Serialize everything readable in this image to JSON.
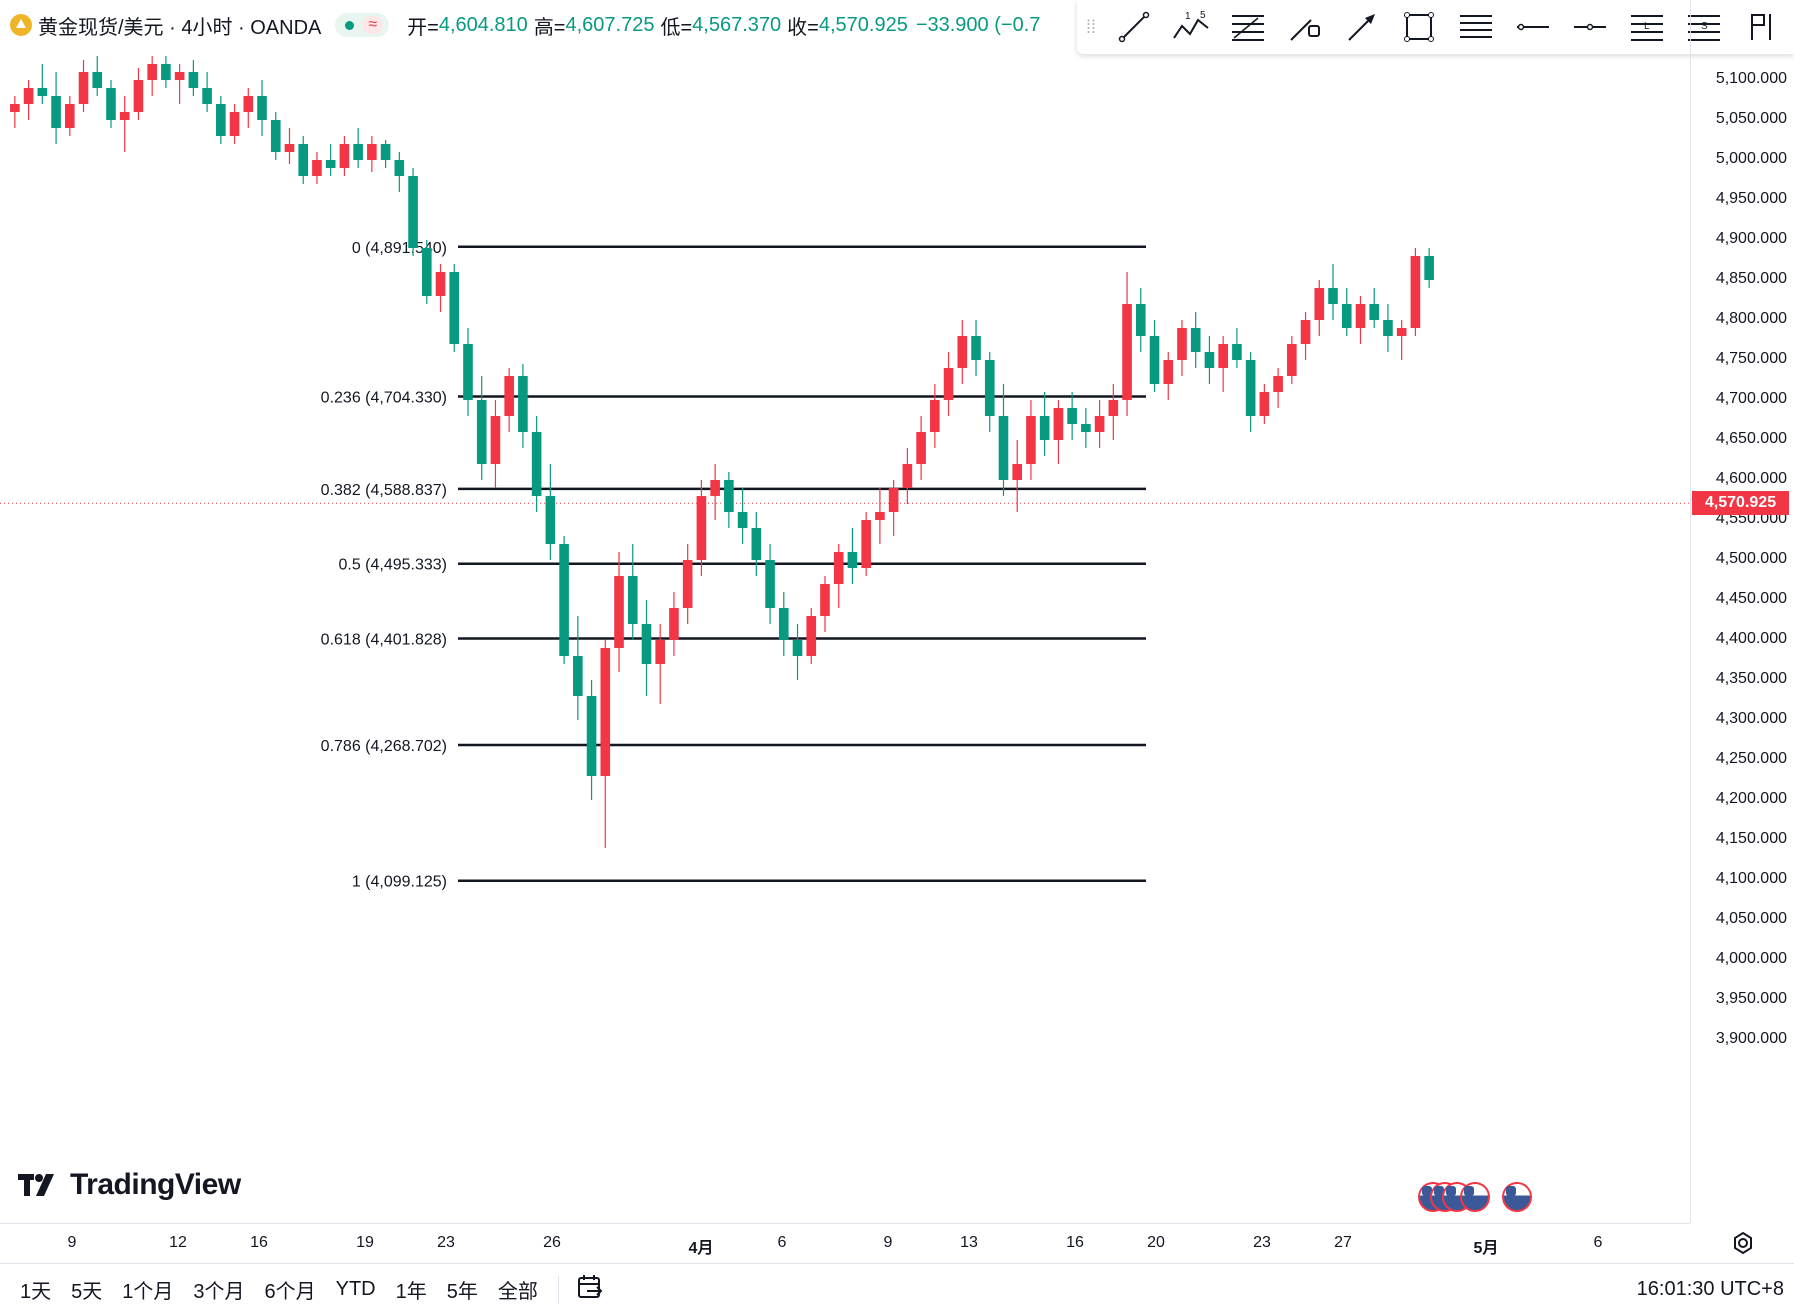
{
  "header": {
    "title": "黄金现货/美元 · 4小时 · OANDA",
    "open_label": "开=",
    "open": "4,604.810",
    "high_label": "高=",
    "high": "4,607.725",
    "low_label": "低=",
    "low": "4,567.370",
    "close_label": "收=",
    "close": "4,570.925",
    "change": "−33.900 (−0.7"
  },
  "toolbar": {
    "icons": [
      "trend-line-icon",
      "xabcd-pattern-icon",
      "fib-retracement-icon",
      "path-icon",
      "arrow-icon",
      "rectangle-icon",
      "parallel-channel-icon",
      "horizontal-ray-icon",
      "horizontal-line-icon",
      "long-position-icon",
      "short-position-icon",
      "flag-icon"
    ]
  },
  "price_axis": {
    "labels": [
      "5,100.000",
      "5,050.000",
      "5,000.000",
      "4,950.000",
      "4,900.000",
      "4,850.000",
      "4,800.000",
      "4,750.000",
      "4,700.000",
      "4,650.000",
      "4,600.000",
      "4,550.000",
      "4,500.000",
      "4,450.000",
      "4,400.000",
      "4,350.000",
      "4,300.000",
      "4,250.000",
      "4,200.000",
      "4,150.000",
      "4,100.000",
      "4,050.000",
      "4,000.000",
      "3,950.000",
      "3,900.000"
    ],
    "current_price": "4,570.925"
  },
  "time_axis": {
    "labels": [
      "9",
      "12",
      "16",
      "19",
      "23",
      "26",
      "4月",
      "6",
      "9",
      "13",
      "16",
      "20",
      "23",
      "27",
      "5月",
      "6"
    ]
  },
  "fib_levels": [
    {
      "label": "0 (4,891.540)",
      "price": 4891.54
    },
    {
      "label": "0.236 (4,704.330)",
      "price": 4704.33
    },
    {
      "label": "0.382 (4,588.837)",
      "price": 4588.837
    },
    {
      "label": "0.5 (4,495.333)",
      "price": 4495.333
    },
    {
      "label": "0.618 (4,401.828)",
      "price": 4401.828
    },
    {
      "label": "0.786 (4,268.702)",
      "price": 4268.702
    },
    {
      "label": "1 (4,099.125)",
      "price": 4099.125
    }
  ],
  "ranges": [
    "1天",
    "5天",
    "1个月",
    "3个月",
    "6个月",
    "YTD",
    "1年",
    "5年",
    "全部"
  ],
  "clock": "16:01:30 UTC+8",
  "logo": "TradingView",
  "colors": {
    "up": "#f23645",
    "down": "#089981",
    "fib_line": "#131722",
    "current_price_bg": "#f23645"
  },
  "chart_data": {
    "type": "candlestick",
    "symbol": "黄金现货/美元",
    "interval": "4小时",
    "y_range": [
      3880,
      5130
    ],
    "candles": [
      [
        5060,
        5080,
        5040,
        5070
      ],
      [
        5070,
        5100,
        5050,
        5090
      ],
      [
        5090,
        5120,
        5070,
        5080
      ],
      [
        5080,
        5110,
        5020,
        5040
      ],
      [
        5040,
        5080,
        5030,
        5070
      ],
      [
        5070,
        5125,
        5060,
        5110
      ],
      [
        5110,
        5130,
        5080,
        5090
      ],
      [
        5090,
        5100,
        5040,
        5050
      ],
      [
        5050,
        5080,
        5010,
        5060
      ],
      [
        5060,
        5115,
        5050,
        5100
      ],
      [
        5100,
        5130,
        5080,
        5120
      ],
      [
        5120,
        5130,
        5090,
        5100
      ],
      [
        5100,
        5120,
        5070,
        5110
      ],
      [
        5110,
        5125,
        5080,
        5090
      ],
      [
        5090,
        5110,
        5060,
        5070
      ],
      [
        5070,
        5080,
        5020,
        5030
      ],
      [
        5030,
        5070,
        5020,
        5060
      ],
      [
        5060,
        5090,
        5040,
        5080
      ],
      [
        5080,
        5100,
        5030,
        5050
      ],
      [
        5050,
        5060,
        5000,
        5010
      ],
      [
        5010,
        5040,
        4995,
        5020
      ],
      [
        5020,
        5030,
        4970,
        4980
      ],
      [
        4980,
        5010,
        4970,
        5000
      ],
      [
        5000,
        5020,
        4980,
        4990
      ],
      [
        4990,
        5030,
        4980,
        5020
      ],
      [
        5020,
        5040,
        4990,
        5000
      ],
      [
        5000,
        5030,
        4985,
        5020
      ],
      [
        5020,
        5025,
        4990,
        5000
      ],
      [
        5000,
        5010,
        4960,
        4980
      ],
      [
        4980,
        4990,
        4880,
        4890
      ],
      [
        4890,
        4900,
        4820,
        4830
      ],
      [
        4830,
        4870,
        4810,
        4860
      ],
      [
        4860,
        4870,
        4760,
        4770
      ],
      [
        4770,
        4790,
        4680,
        4700
      ],
      [
        4700,
        4730,
        4600,
        4620
      ],
      [
        4620,
        4700,
        4590,
        4680
      ],
      [
        4680,
        4740,
        4660,
        4730
      ],
      [
        4730,
        4745,
        4640,
        4660
      ],
      [
        4660,
        4680,
        4560,
        4580
      ],
      [
        4580,
        4620,
        4500,
        4520
      ],
      [
        4520,
        4530,
        4370,
        4380
      ],
      [
        4380,
        4430,
        4300,
        4330
      ],
      [
        4330,
        4350,
        4200,
        4230
      ],
      [
        4230,
        4400,
        4140,
        4390
      ],
      [
        4390,
        4510,
        4360,
        4480
      ],
      [
        4480,
        4520,
        4400,
        4420
      ],
      [
        4420,
        4450,
        4330,
        4370
      ],
      [
        4370,
        4420,
        4320,
        4400
      ],
      [
        4400,
        4460,
        4380,
        4440
      ],
      [
        4440,
        4520,
        4420,
        4500
      ],
      [
        4500,
        4600,
        4480,
        4580
      ],
      [
        4580,
        4620,
        4550,
        4600
      ],
      [
        4600,
        4610,
        4540,
        4560
      ],
      [
        4560,
        4590,
        4520,
        4540
      ],
      [
        4540,
        4560,
        4480,
        4500
      ],
      [
        4500,
        4520,
        4420,
        4440
      ],
      [
        4440,
        4460,
        4380,
        4400
      ],
      [
        4400,
        4420,
        4350,
        4380
      ],
      [
        4380,
        4440,
        4370,
        4430
      ],
      [
        4430,
        4480,
        4410,
        4470
      ],
      [
        4470,
        4520,
        4440,
        4510
      ],
      [
        4510,
        4540,
        4470,
        4490
      ],
      [
        4490,
        4560,
        4480,
        4550
      ],
      [
        4550,
        4590,
        4520,
        4560
      ],
      [
        4560,
        4600,
        4530,
        4590
      ],
      [
        4590,
        4640,
        4570,
        4620
      ],
      [
        4620,
        4680,
        4600,
        4660
      ],
      [
        4660,
        4720,
        4640,
        4700
      ],
      [
        4700,
        4760,
        4680,
        4740
      ],
      [
        4740,
        4800,
        4720,
        4780
      ],
      [
        4780,
        4800,
        4730,
        4750
      ],
      [
        4750,
        4760,
        4660,
        4680
      ],
      [
        4680,
        4720,
        4580,
        4600
      ],
      [
        4600,
        4650,
        4560,
        4620
      ],
      [
        4620,
        4700,
        4600,
        4680
      ],
      [
        4680,
        4710,
        4630,
        4650
      ],
      [
        4650,
        4700,
        4620,
        4690
      ],
      [
        4690,
        4710,
        4650,
        4670
      ],
      [
        4670,
        4690,
        4640,
        4660
      ],
      [
        4660,
        4700,
        4640,
        4680
      ],
      [
        4680,
        4720,
        4650,
        4700
      ],
      [
        4700,
        4860,
        4680,
        4820
      ],
      [
        4820,
        4840,
        4760,
        4780
      ],
      [
        4780,
        4800,
        4710,
        4720
      ],
      [
        4720,
        4760,
        4700,
        4750
      ],
      [
        4750,
        4800,
        4730,
        4790
      ],
      [
        4790,
        4810,
        4740,
        4760
      ],
      [
        4760,
        4780,
        4720,
        4740
      ],
      [
        4740,
        4780,
        4710,
        4770
      ],
      [
        4770,
        4790,
        4740,
        4750
      ],
      [
        4750,
        4760,
        4660,
        4680
      ],
      [
        4680,
        4720,
        4670,
        4710
      ],
      [
        4710,
        4740,
        4690,
        4730
      ],
      [
        4730,
        4780,
        4720,
        4770
      ],
      [
        4770,
        4810,
        4750,
        4800
      ],
      [
        4800,
        4850,
        4780,
        4840
      ],
      [
        4840,
        4870,
        4800,
        4820
      ],
      [
        4820,
        4840,
        4780,
        4790
      ],
      [
        4790,
        4830,
        4770,
        4820
      ],
      [
        4820,
        4840,
        4790,
        4800
      ],
      [
        4800,
        4820,
        4760,
        4780
      ],
      [
        4780,
        4800,
        4750,
        4790
      ],
      [
        4790,
        4890,
        4780,
        4880
      ],
      [
        4880,
        4890,
        4840,
        4850
      ]
    ]
  }
}
